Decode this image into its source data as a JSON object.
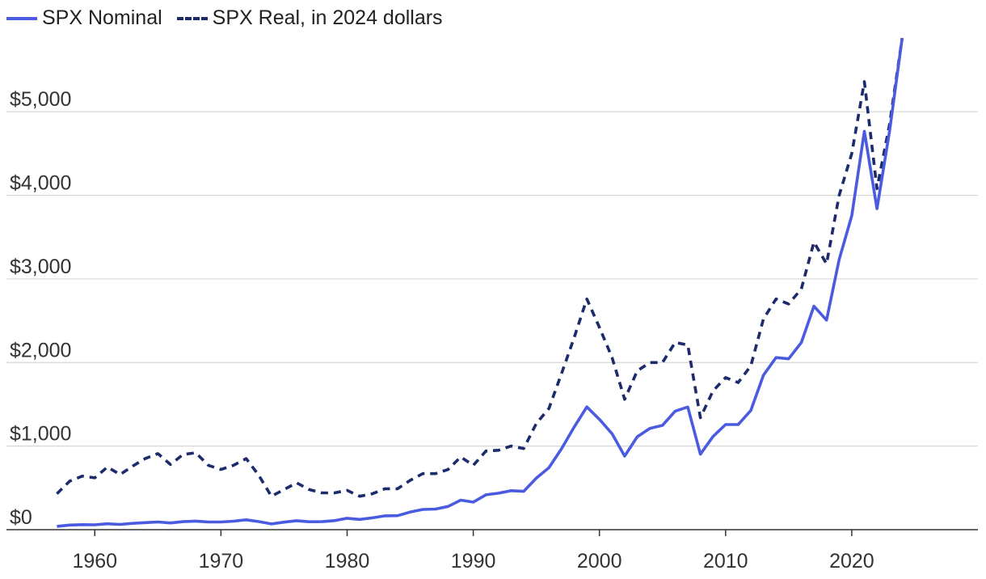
{
  "chart_data": {
    "type": "line",
    "title": "",
    "xlabel": "",
    "ylabel": "",
    "xlim": [
      1953,
      2030
    ],
    "ylim": [
      0,
      5950
    ],
    "grid": true,
    "legend_position": "top-left",
    "x_ticks": [
      1960,
      1970,
      1980,
      1990,
      2000,
      2010,
      2020
    ],
    "x_tick_labels": [
      "1960",
      "1970",
      "1980",
      "1990",
      "2000",
      "2010",
      "2020"
    ],
    "y_ticks": [
      0,
      1000,
      2000,
      3000,
      4000,
      5000
    ],
    "y_tick_labels": [
      "$0",
      "$1,000",
      "$2,000",
      "$3,000",
      "$4,000",
      "$5,000"
    ],
    "x": [
      1957,
      1958,
      1959,
      1960,
      1961,
      1962,
      1963,
      1964,
      1965,
      1966,
      1967,
      1968,
      1969,
      1970,
      1971,
      1972,
      1973,
      1974,
      1975,
      1976,
      1977,
      1978,
      1979,
      1980,
      1981,
      1982,
      1983,
      1984,
      1985,
      1986,
      1987,
      1988,
      1989,
      1990,
      1991,
      1992,
      1993,
      1994,
      1995,
      1996,
      1997,
      1998,
      1999,
      2000,
      2001,
      2002,
      2003,
      2004,
      2005,
      2006,
      2007,
      2008,
      2009,
      2010,
      2011,
      2012,
      2013,
      2014,
      2015,
      2016,
      2017,
      2018,
      2019,
      2020,
      2021,
      2022,
      2023,
      2024
    ],
    "series": [
      {
        "name": "SPX Nominal",
        "color": "#4a5be0",
        "style": "solid",
        "values": [
          40,
          55,
          60,
          58,
          71,
          63,
          75,
          84,
          92,
          80,
          96,
          103,
          92,
          92,
          102,
          118,
          97,
          69,
          90,
          107,
          95,
          96,
          108,
          136,
          123,
          141,
          165,
          167,
          211,
          242,
          247,
          278,
          353,
          330,
          417,
          436,
          466,
          459,
          616,
          741,
          970,
          1229,
          1469,
          1320,
          1148,
          880,
          1112,
          1212,
          1248,
          1418,
          1468,
          903,
          1115,
          1258,
          1258,
          1426,
          1848,
          2059,
          2044,
          2239,
          2674,
          2507,
          3231,
          3756,
          4766,
          3840,
          4770,
          5882
        ]
      },
      {
        "name": "SPX Real, in 2024 dollars",
        "color": "#1c2b6b",
        "style": "dashed",
        "values": [
          430,
          580,
          640,
          620,
          750,
          660,
          760,
          850,
          910,
          780,
          900,
          920,
          770,
          720,
          770,
          850,
          650,
          400,
          480,
          560,
          480,
          440,
          440,
          470,
          400,
          430,
          490,
          490,
          590,
          670,
          670,
          720,
          870,
          770,
          940,
          950,
          1000,
          970,
          1270,
          1450,
          1870,
          2300,
          2760,
          2420,
          2060,
          1560,
          1900,
          2000,
          2000,
          2240,
          2210,
          1340,
          1660,
          1820,
          1760,
          1960,
          2520,
          2760,
          2700,
          2880,
          3440,
          3180,
          4000,
          4500,
          5360,
          4080,
          4850,
          5882
        ]
      }
    ]
  }
}
